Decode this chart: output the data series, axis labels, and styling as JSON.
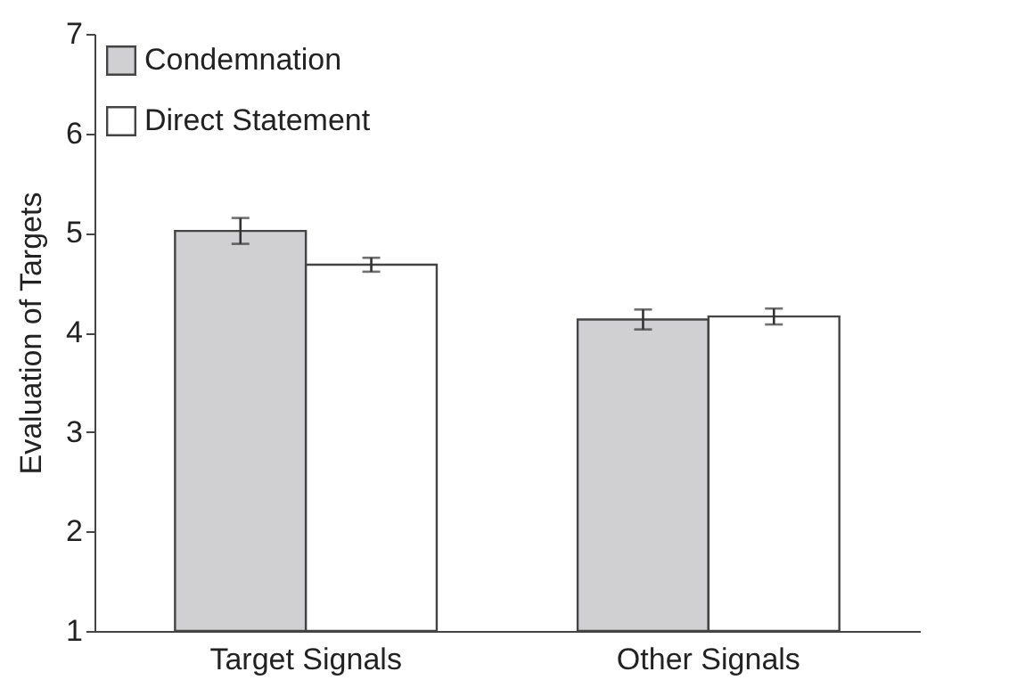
{
  "chart_data": {
    "type": "bar",
    "ylabel": "Evaluation of Targets",
    "categories": [
      "Target Signals",
      "Other Signals"
    ],
    "series": [
      {
        "name": "Condemnation",
        "color": "#d0d0d2",
        "values": [
          5.02,
          4.13
        ],
        "errors": [
          0.13,
          0.1
        ]
      },
      {
        "name": "Direct Statement",
        "color": "#ffffff",
        "values": [
          4.68,
          4.16
        ],
        "errors": [
          0.07,
          0.08
        ]
      }
    ],
    "ylim": [
      1,
      7
    ],
    "yticks": [
      1,
      2,
      3,
      4,
      5,
      6,
      7
    ],
    "grid": false,
    "legend": "top left"
  }
}
